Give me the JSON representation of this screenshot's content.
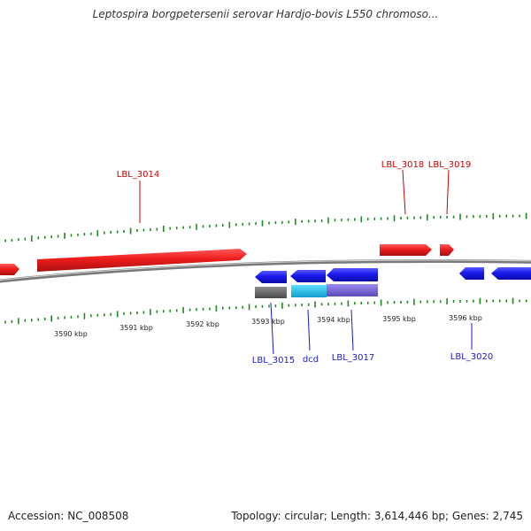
{
  "title": "Leptospira borgpetersenii serovar Hardjo-bovis L550 chromoso...",
  "footer": {
    "accession": "Accession: NC_008508",
    "summary": "Topology: circular; Length: 3,614,446 bp; Genes: 2,745"
  },
  "colors": {
    "forward_gene": "#ee1c1c",
    "reverse_gene": "#1a1aee",
    "gc_tick": "#1f8a1f",
    "backbone": "#7a7a7a",
    "forward_label": "#cc0000",
    "reverse_label": "#1a1acc",
    "feature_gray": "#6a6a6a",
    "feature_cyan": "#22c6ee",
    "feature_purple": "#7b68d8"
  },
  "scale": {
    "labels": [
      "3590 kbp",
      "3591 kbp",
      "3592 kbp",
      "3593 kbp",
      "3594 kbp",
      "3595 kbp",
      "3596 kbp"
    ]
  },
  "genes": {
    "forward_labels": [
      "LBL_3014",
      "LBL_3018",
      "LBL_3019"
    ],
    "reverse_labels": [
      "LBL_3015",
      "dcd",
      "LBL_3017",
      "LBL_3020"
    ]
  }
}
